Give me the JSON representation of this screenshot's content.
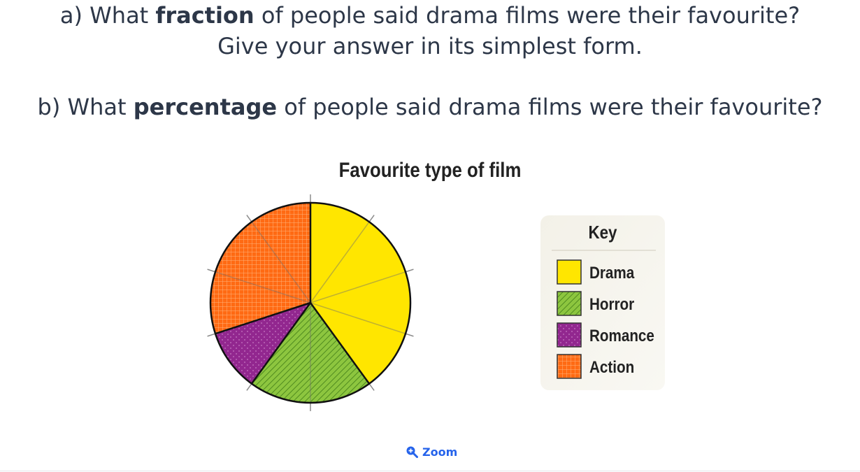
{
  "questions": {
    "a_prefix": "a) What ",
    "a_bold": "fraction",
    "a_suffix": " of people said drama films were their favourite?",
    "a_line2": "Give your answer in its simplest form.",
    "b_prefix": "b) What ",
    "b_bold": "percentage",
    "b_suffix": " of people said drama films were their favourite?"
  },
  "chart_data": {
    "type": "pie",
    "title": "Favourite type of film",
    "legend_title": "Key",
    "legend_position": "right",
    "total_sectors": 10,
    "slices": [
      {
        "label": "Drama",
        "value": 4,
        "color": "#ffe600"
      },
      {
        "label": "Horror",
        "value": 2,
        "color": "#8dc63f"
      },
      {
        "label": "Romance",
        "value": 1,
        "color": "#92278f"
      },
      {
        "label": "Action",
        "value": 3,
        "color": "#ff6a13"
      }
    ]
  },
  "zoom": {
    "label": "Zoom",
    "icon": "zoom-in-icon",
    "color": "#2563eb"
  }
}
